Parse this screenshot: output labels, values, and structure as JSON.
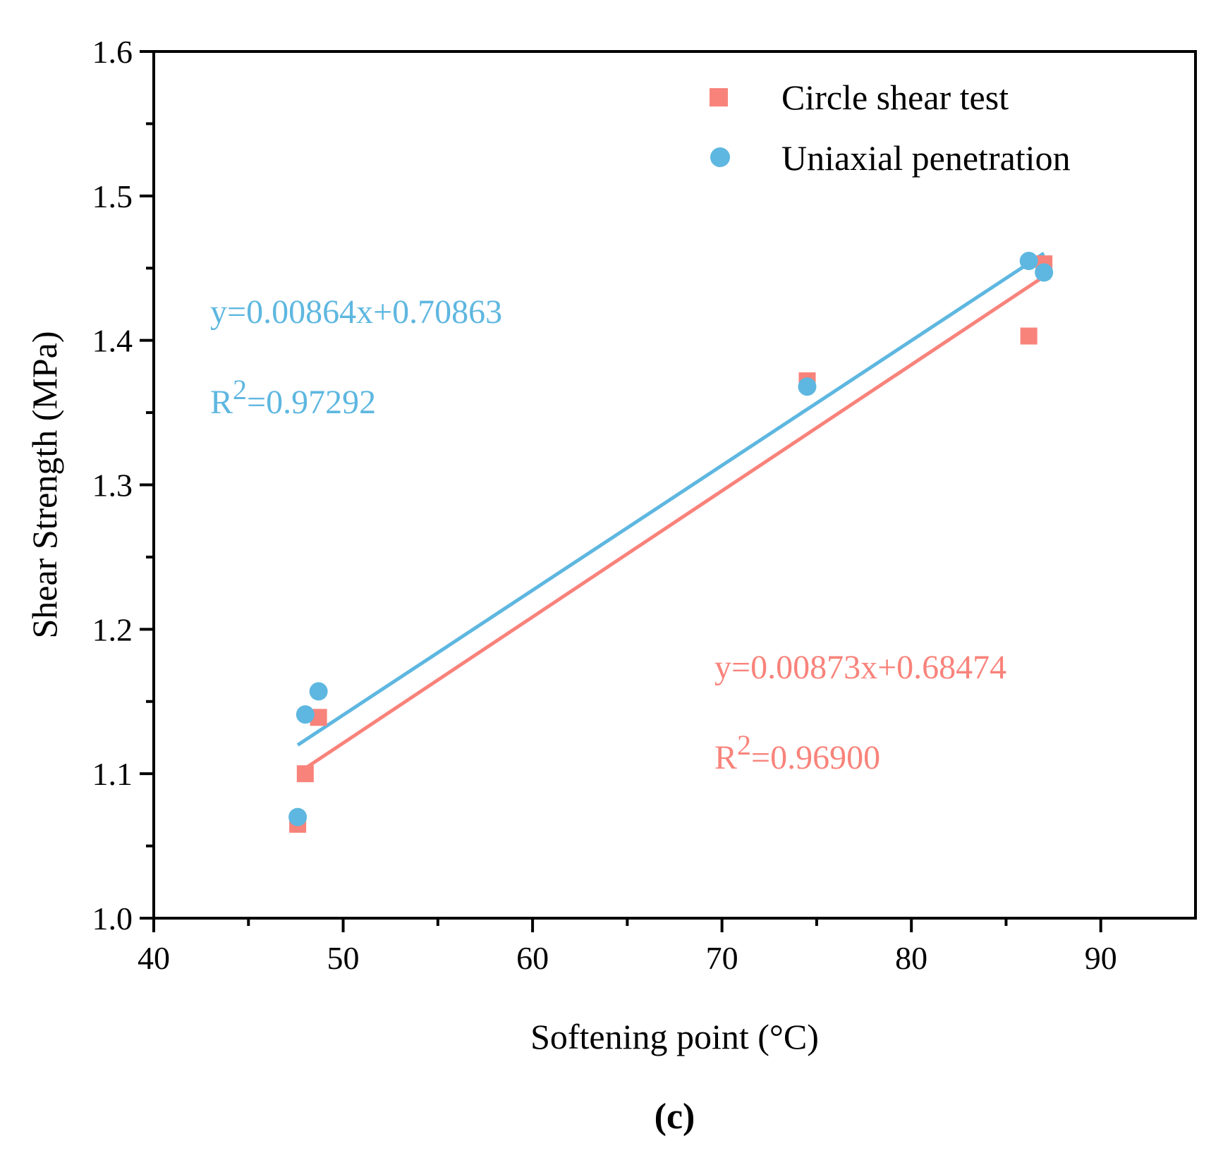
{
  "chart_data": {
    "type": "scatter",
    "xlabel": "Softening point (°C)",
    "ylabel": "Shear Strength (MPa)",
    "xlim": [
      40,
      95
    ],
    "ylim": [
      1.0,
      1.6
    ],
    "x_ticks": [
      40,
      50,
      60,
      70,
      80,
      90
    ],
    "x_minor_ticks": [
      45,
      55,
      65,
      75,
      85
    ],
    "y_ticks": [
      1.0,
      1.1,
      1.2,
      1.3,
      1.4,
      1.5,
      1.6
    ],
    "y_minor_ticks": [
      1.05,
      1.15,
      1.25,
      1.35,
      1.45,
      1.55
    ],
    "x_tick_labels": [
      "40",
      "50",
      "60",
      "70",
      "80",
      "90"
    ],
    "y_tick_labels": [
      "1.0",
      "1.1",
      "1.2",
      "1.3",
      "1.4",
      "1.5",
      "1.6"
    ],
    "grid": false,
    "legend_position": "top-right",
    "panel_label": "(c)",
    "series": [
      {
        "name": "Circle shear test",
        "marker": "square",
        "color": "#F8837B",
        "x": [
          47.6,
          48.0,
          48.7,
          74.5,
          86.2,
          87.0
        ],
        "y": [
          1.065,
          1.1,
          1.139,
          1.372,
          1.403,
          1.453
        ],
        "fit": {
          "slope": 0.00873,
          "intercept": 0.68474,
          "x_range": [
            47.6,
            87.0
          ]
        },
        "equation": {
          "eq": "y=0.00873x+0.68474",
          "r2_prefix": "R",
          "r2_sup": "2",
          "r2_value": "=0.96900"
        }
      },
      {
        "name": "Uniaxial penetration",
        "marker": "circle",
        "color": "#5EB7E0",
        "x": [
          47.6,
          48.0,
          48.7,
          74.5,
          86.2,
          87.0
        ],
        "y": [
          1.07,
          1.141,
          1.157,
          1.368,
          1.455,
          1.447
        ],
        "fit": {
          "slope": 0.00864,
          "intercept": 0.70863,
          "x_range": [
            47.6,
            87.0
          ]
        },
        "equation": {
          "eq": "y=0.00864x+0.70863",
          "r2_prefix": "R",
          "r2_sup": "2",
          "r2_value": "=0.97292"
        }
      }
    ]
  }
}
